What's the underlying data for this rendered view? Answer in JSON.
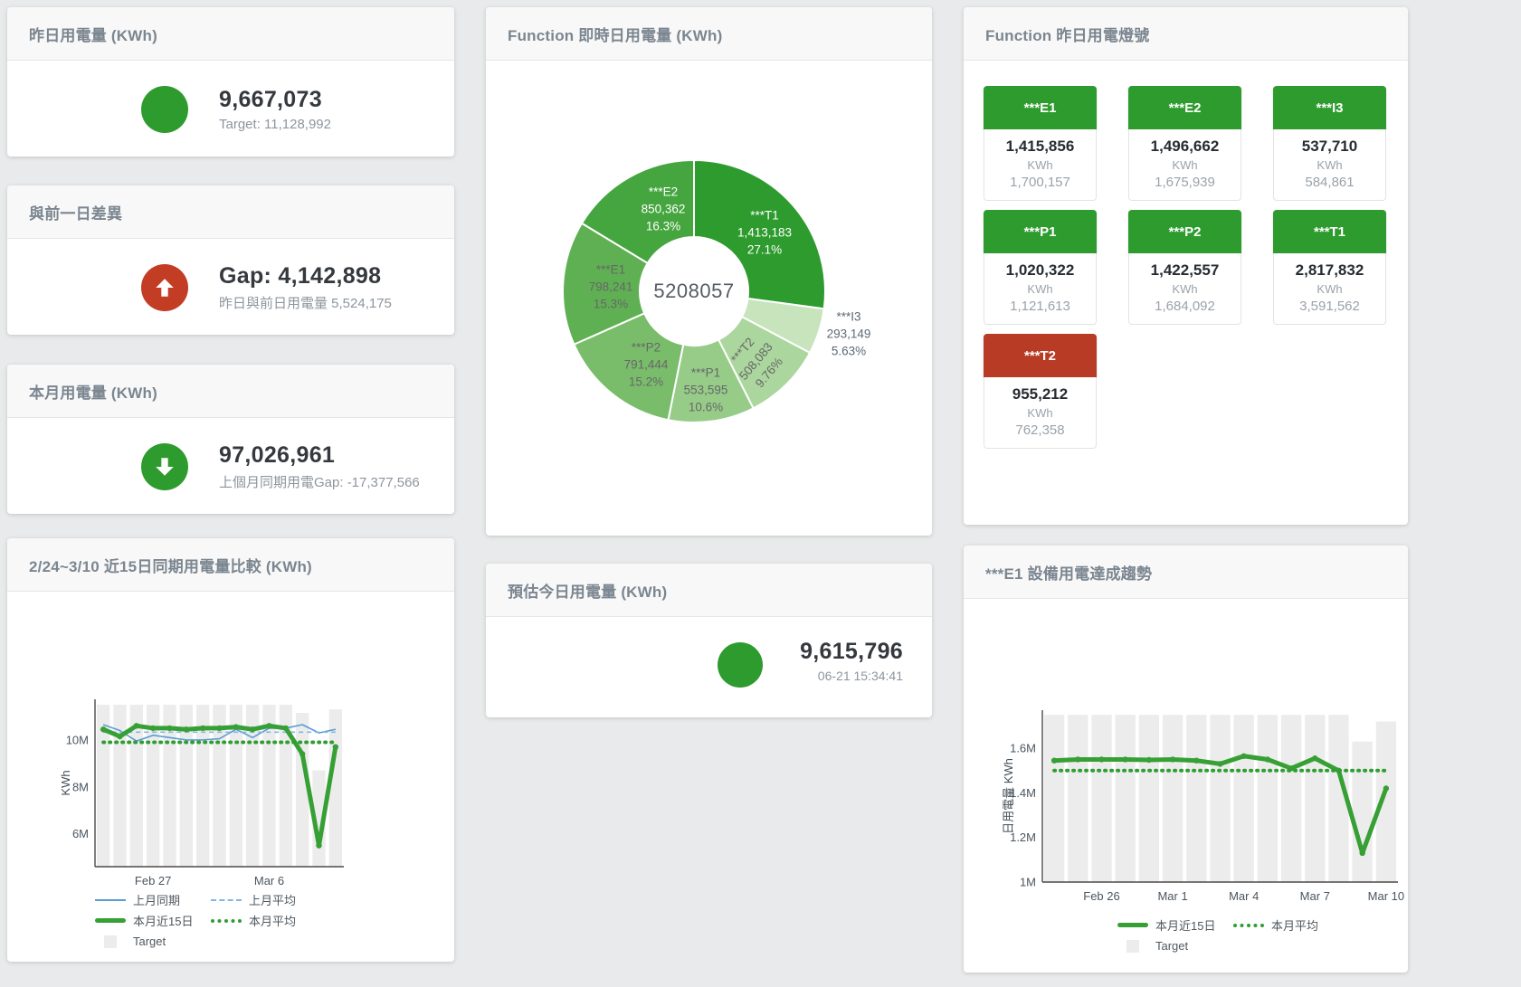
{
  "cards": {
    "yesterday": {
      "title": "昨日用電量 (KWh)",
      "value": "9,667,073",
      "subtitle": "Target: 11,128,992"
    },
    "day_gap": {
      "title": "與前一日差異",
      "value": "Gap: 4,142,898",
      "subtitle": "昨日與前日用電量 5,524,175"
    },
    "month": {
      "title": "本月用電量 (KWh)",
      "value": "97,026,961",
      "subtitle": "上個月同期用電Gap: -17,377,566"
    },
    "estimate": {
      "title": "預估今日用電量 (KWh)",
      "value": "9,615,796",
      "timestamp": "06-21 15:34:41"
    }
  },
  "lamp_card": {
    "title": "Function 昨日用電燈號",
    "tiles": [
      {
        "label": "***E1",
        "value": "1,415,856",
        "unit": "KWh",
        "target": "1,700,157",
        "status": "green"
      },
      {
        "label": "***E2",
        "value": "1,496,662",
        "unit": "KWh",
        "target": "1,675,939",
        "status": "green"
      },
      {
        "label": "***I3",
        "value": "537,710",
        "unit": "KWh",
        "target": "584,861",
        "status": "green"
      },
      {
        "label": "***P1",
        "value": "1,020,322",
        "unit": "KWh",
        "target": "1,121,613",
        "status": "green"
      },
      {
        "label": "***P2",
        "value": "1,422,557",
        "unit": "KWh",
        "target": "1,684,092",
        "status": "green"
      },
      {
        "label": "***T1",
        "value": "2,817,832",
        "unit": "KWh",
        "target": "3,591,562",
        "status": "green"
      },
      {
        "label": "***T2",
        "value": "955,212",
        "unit": "KWh",
        "target": "762,358",
        "status": "red"
      }
    ]
  },
  "chart_data": [
    {
      "type": "pie",
      "variant": "donut",
      "title": "Function 即時日用電量 (KWh)",
      "center_total": "5208057",
      "slices": [
        {
          "label": "***T1",
          "value_label": "1,413,183",
          "pct_label": "27.1%",
          "value": 1413183,
          "pct": 27.1,
          "color": "#2e9b2e"
        },
        {
          "label": "***I3",
          "value_label": "293,149",
          "pct_label": "5.63%",
          "value": 293149,
          "pct": 5.63,
          "color": "#c7e4bd"
        },
        {
          "label": "***T2",
          "value_label": "508,083",
          "pct_label": "9.76%",
          "value": 508083,
          "pct": 9.76,
          "color": "#abd69e"
        },
        {
          "label": "***P1",
          "value_label": "553,595",
          "pct_label": "10.6%",
          "value": 553595,
          "pct": 10.6,
          "color": "#96cc88"
        },
        {
          "label": "***P2",
          "value_label": "791,444",
          "pct_label": "15.2%",
          "value": 791444,
          "pct": 15.2,
          "color": "#79bd6b"
        },
        {
          "label": "***E1",
          "value_label": "798,241",
          "pct_label": "15.3%",
          "value": 798241,
          "pct": 15.3,
          "color": "#5fb053"
        },
        {
          "label": "***E2",
          "value_label": "850,362",
          "pct_label": "16.3%",
          "value": 850362,
          "pct": 16.3,
          "color": "#45a53e"
        }
      ]
    },
    {
      "type": "line",
      "title": "2/24~3/10 近15日同期用電量比較 (KWh)",
      "ylabel": "KWh",
      "unit": "M KWh",
      "ymin": 4.6,
      "ymax": 11.73,
      "yticks": [
        {
          "v": 6,
          "label": "6M"
        },
        {
          "v": 8,
          "label": "8M"
        },
        {
          "v": 10,
          "label": "10M"
        }
      ],
      "xticks": [
        {
          "i": 3,
          "label": "Feb 27"
        },
        {
          "i": 10,
          "label": "Mar 6"
        }
      ],
      "target_label": "Target",
      "target_bars": [
        11.5,
        11.5,
        11.5,
        11.5,
        11.5,
        11.5,
        11.5,
        11.5,
        11.5,
        11.5,
        11.5,
        11.5,
        11.15,
        8.7,
        11.3
      ],
      "series": [
        {
          "name": "上月同期",
          "style": "blue-solid",
          "values": [
            10.65,
            10.4,
            9.95,
            10.2,
            10.1,
            10.0,
            10.0,
            10.05,
            10.45,
            10.1,
            10.5,
            10.5,
            10.65,
            10.3,
            10.45
          ]
        },
        {
          "name": "上月平均",
          "style": "blue-dashed",
          "const": 10.33
        },
        {
          "name": "本月近15日",
          "style": "green-thick",
          "values": [
            10.45,
            10.15,
            10.6,
            10.5,
            10.5,
            10.45,
            10.5,
            10.5,
            10.55,
            10.45,
            10.6,
            10.5,
            9.4,
            5.5,
            9.7
          ]
        },
        {
          "name": "本月平均",
          "style": "green-dotted",
          "const": 9.9
        }
      ]
    },
    {
      "type": "line",
      "title": "***E1 設備用電達成趨勢",
      "ylabel": "日用電量 KWh",
      "unit": "M KWh",
      "ymin": 1.0,
      "ymax": 1.771,
      "yticks": [
        {
          "v": 1.0,
          "label": "1M"
        },
        {
          "v": 1.2,
          "label": "1.2M"
        },
        {
          "v": 1.4,
          "label": "1.4M"
        },
        {
          "v": 1.6,
          "label": "1.6M"
        }
      ],
      "xticks": [
        {
          "i": 2,
          "label": "Feb 26"
        },
        {
          "i": 5,
          "label": "Mar 1"
        },
        {
          "i": 8,
          "label": "Mar 4"
        },
        {
          "i": 11,
          "label": "Mar 7"
        },
        {
          "i": 14,
          "label": "Mar 10"
        }
      ],
      "target_label": "Target",
      "target_bars": [
        1.75,
        1.75,
        1.75,
        1.75,
        1.75,
        1.75,
        1.75,
        1.75,
        1.75,
        1.75,
        1.75,
        1.75,
        1.75,
        1.63,
        1.72
      ],
      "series": [
        {
          "name": "本月近15日",
          "style": "green-thick",
          "values": [
            1.545,
            1.55,
            1.55,
            1.55,
            1.548,
            1.55,
            1.545,
            1.53,
            1.565,
            1.55,
            1.51,
            1.555,
            1.5,
            1.13,
            1.42
          ]
        },
        {
          "name": "本月平均",
          "style": "green-dotted",
          "const": 1.5
        }
      ]
    }
  ],
  "colors": {
    "green": "#2e9b2e",
    "red": "#c23d24",
    "tile_red": "#b83b26",
    "line_green": "#36a035",
    "line_blue": "#5b9bd5",
    "target_bar": "#ececec"
  }
}
